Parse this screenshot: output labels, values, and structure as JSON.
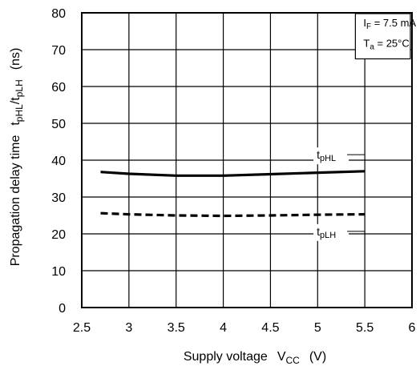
{
  "chart_data": {
    "type": "line",
    "title": "",
    "xlabel": {
      "text": "Supply voltage",
      "symbol": "V",
      "symbol_sub": "CC",
      "unit": "(V)"
    },
    "ylabel": {
      "text": "Propagation delay time",
      "symbol1": "t",
      "sub1": "pHL",
      "sep": "/",
      "symbol2": "t",
      "sub2": "pLH",
      "unit": "(ns)"
    },
    "xlim": [
      2.5,
      6
    ],
    "ylim": [
      0,
      80
    ],
    "xticks": [
      "2.5",
      "3",
      "3.5",
      "4",
      "4.5",
      "5",
      "5.5",
      "6"
    ],
    "xtick_values": [
      2.5,
      3,
      3.5,
      4,
      4.5,
      5,
      5.5,
      6
    ],
    "yticks": [
      "0",
      "10",
      "20",
      "30",
      "40",
      "50",
      "60",
      "70",
      "80"
    ],
    "ytick_values": [
      0,
      10,
      20,
      30,
      40,
      50,
      60,
      70,
      80
    ],
    "grid": true,
    "conditions": [
      {
        "symbol": "I",
        "sub": "F",
        "value": " = 7.5 mA"
      },
      {
        "symbol": "T",
        "sub": "a",
        "value": " = 25°C"
      }
    ],
    "series": [
      {
        "name": "tpHL",
        "label_symbol": "t",
        "label_sub": "pHL",
        "style": "solid",
        "color": "#000000",
        "x": [
          2.7,
          3.0,
          3.5,
          4.0,
          4.5,
          5.0,
          5.5
        ],
        "y": [
          36.8,
          36.3,
          35.8,
          35.8,
          36.2,
          36.6,
          37.0
        ]
      },
      {
        "name": "tpLH",
        "label_symbol": "t",
        "label_sub": "pLH",
        "style": "dashed",
        "color": "#000000",
        "x": [
          2.7,
          3.0,
          3.5,
          4.0,
          4.5,
          5.0,
          5.5
        ],
        "y": [
          25.6,
          25.3,
          25.0,
          24.9,
          25.0,
          25.2,
          25.3
        ]
      }
    ]
  }
}
